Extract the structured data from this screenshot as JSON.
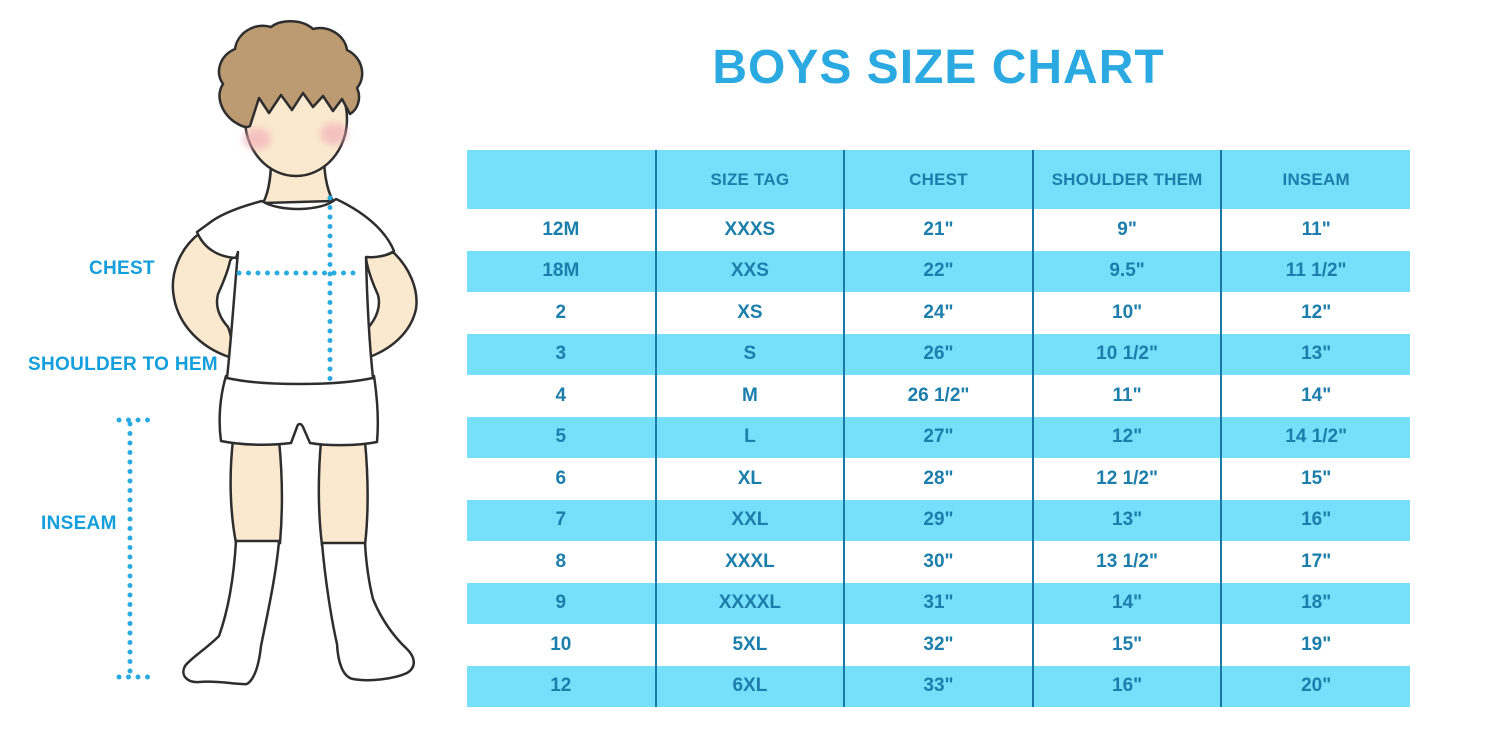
{
  "title": "BOYS SIZE CHART",
  "figure": {
    "labels": {
      "chest": "CHEST",
      "shoulder_to_hem": "SHOULDER TO HEM",
      "inseam": "INSEAM"
    }
  },
  "chart_data": {
    "type": "table",
    "title": "BOYS SIZE CHART",
    "columns": [
      "",
      "SIZE TAG",
      "CHEST",
      "SHOULDER THEM",
      "INSEAM"
    ],
    "rows": [
      [
        "12M",
        "XXXS",
        "21\"",
        "9\"",
        "11\""
      ],
      [
        "18M",
        "XXS",
        "22\"",
        "9.5\"",
        "11 1/2\""
      ],
      [
        "2",
        "XS",
        "24\"",
        "10\"",
        "12\""
      ],
      [
        "3",
        "S",
        "26\"",
        "10 1/2\"",
        "13\""
      ],
      [
        "4",
        "M",
        "26 1/2\"",
        "11\"",
        "14\""
      ],
      [
        "5",
        "L",
        "27\"",
        "12\"",
        "14 1/2\""
      ],
      [
        "6",
        "XL",
        "28\"",
        "12 1/2\"",
        "15\""
      ],
      [
        "7",
        "XXL",
        "29\"",
        "13\"",
        "16\""
      ],
      [
        "8",
        "XXXL",
        "30\"",
        "13 1/2\"",
        "17\""
      ],
      [
        "9",
        "XXXXL",
        "31\"",
        "14\"",
        "18\""
      ],
      [
        "10",
        "5XL",
        "32\"",
        "15\"",
        "19\""
      ],
      [
        "12",
        "6XL",
        "33\"",
        "16\"",
        "20\""
      ]
    ]
  },
  "colors": {
    "title_blue": "#2BA9E1",
    "row_blue": "#76DFFA",
    "table_text_blue": "#1B7EAB",
    "separator_blue": "#1878A8",
    "label_blue": "#139FDB",
    "dotted_line_blue": "#29ABE2",
    "skin": "#FAE9CE",
    "hair": "#BD9B72"
  }
}
